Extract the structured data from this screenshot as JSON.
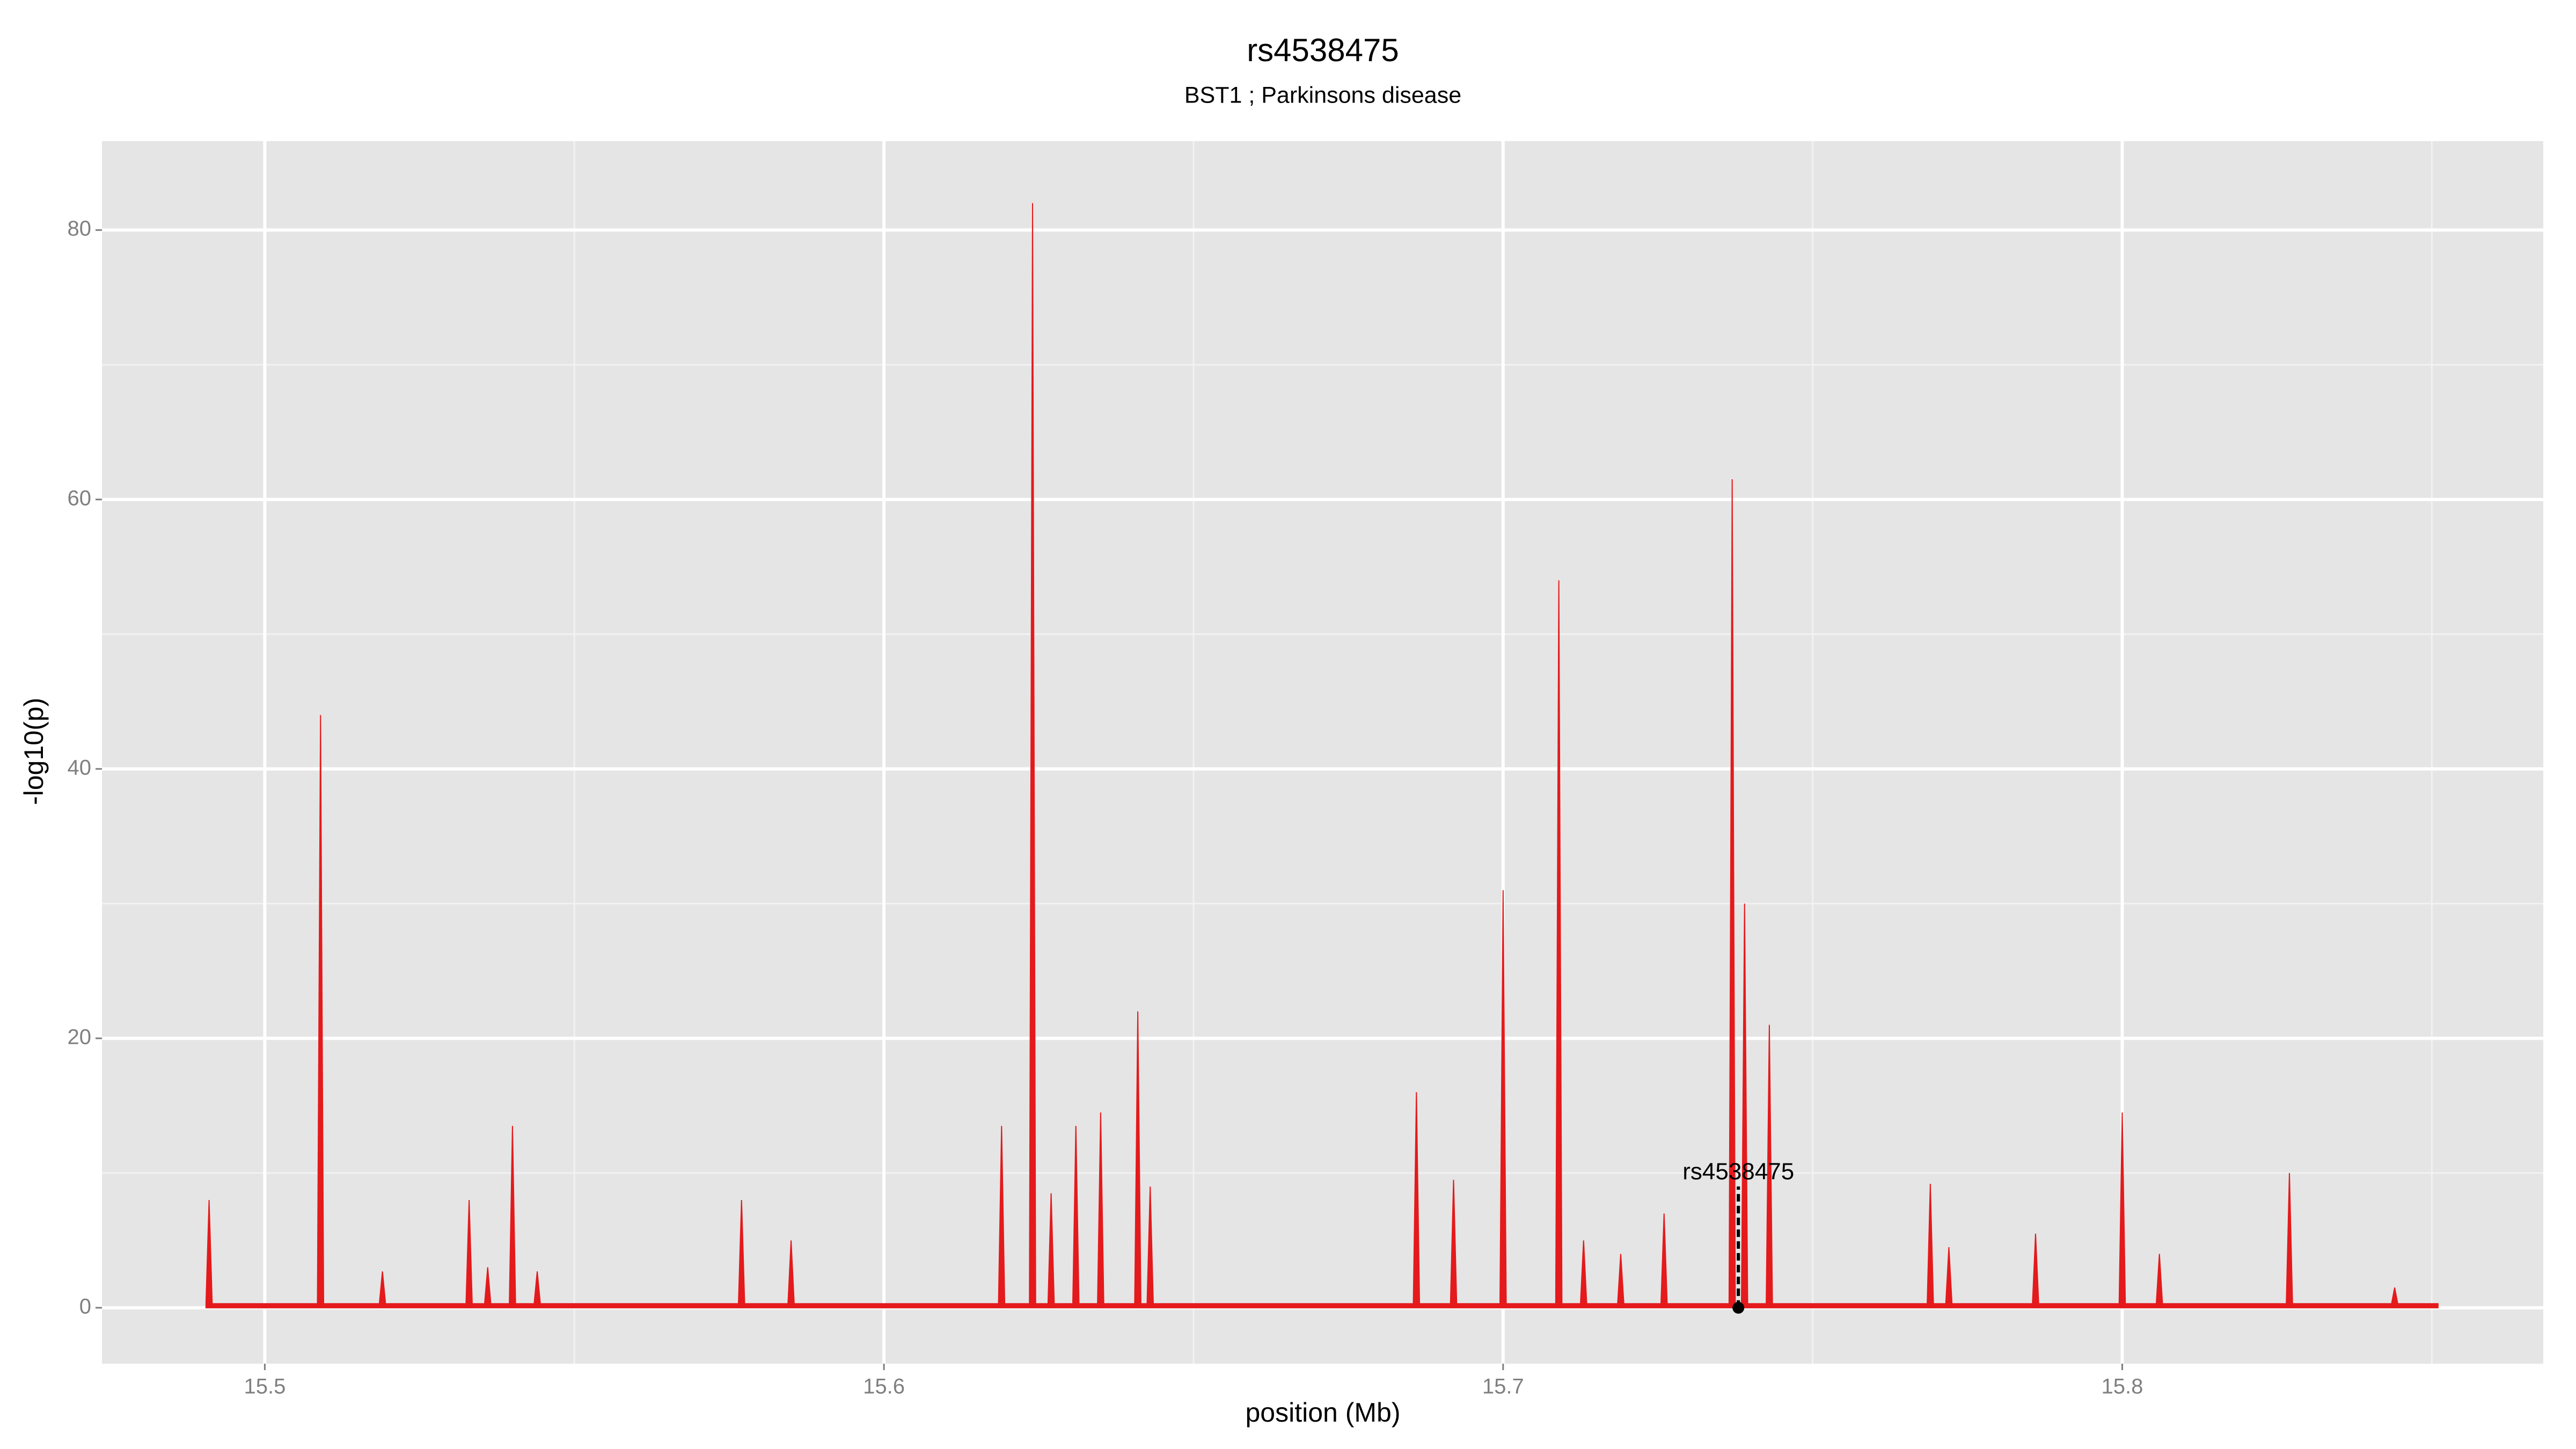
{
  "chart_data": {
    "type": "area",
    "title": "rs4538475",
    "subtitle": "BST1 ; Parkinsons disease",
    "x_label": "position (Mb)",
    "y_label": "-log10(p)",
    "xlim": [
      15.4737,
      15.868
    ],
    "ylim": [
      -4.15,
      86.6
    ],
    "xticks": [
      15.5,
      15.6,
      15.7,
      15.8
    ],
    "yticks": [
      0,
      20,
      40,
      60,
      80
    ],
    "x_minor_grid": [
      15.55,
      15.65,
      15.75,
      15.85
    ],
    "y_minor_grid": [
      10,
      30,
      50,
      70
    ],
    "grid": true,
    "series": [
      {
        "color": "#e41a1c",
        "x": [
          15.4905,
          15.491,
          15.4915,
          15.5085,
          15.509,
          15.5095,
          15.5185,
          15.519,
          15.5195,
          15.5325,
          15.533,
          15.5335,
          15.5355,
          15.536,
          15.5365,
          15.5395,
          15.54,
          15.5405,
          15.5435,
          15.544,
          15.5445,
          15.5765,
          15.577,
          15.5775,
          15.5845,
          15.585,
          15.5855,
          15.6185,
          15.619,
          15.6195,
          15.6235,
          15.624,
          15.6245,
          15.6265,
          15.627,
          15.6275,
          15.6305,
          15.631,
          15.6315,
          15.6345,
          15.635,
          15.6355,
          15.6405,
          15.641,
          15.6415,
          15.6425,
          15.643,
          15.6435,
          15.6855,
          15.686,
          15.6865,
          15.6915,
          15.692,
          15.6925,
          15.6995,
          15.7,
          15.7005,
          15.7085,
          15.709,
          15.7095,
          15.7125,
          15.713,
          15.7135,
          15.7185,
          15.719,
          15.7195,
          15.7255,
          15.726,
          15.7265,
          15.7365,
          15.737,
          15.7375,
          15.7385,
          15.739,
          15.7395,
          15.7425,
          15.743,
          15.7435,
          15.7685,
          15.769,
          15.7695,
          15.7715,
          15.772,
          15.7725,
          15.7855,
          15.786,
          15.7865,
          15.7995,
          15.8,
          15.8005,
          15.8055,
          15.806,
          15.8065,
          15.8265,
          15.827,
          15.8275,
          15.8435,
          15.844,
          15.8445,
          15.851
        ],
        "values": [
          0.3,
          8,
          0.3,
          0.3,
          44,
          0.3,
          0.3,
          2.7,
          0.3,
          0.3,
          8,
          0.3,
          0.3,
          3,
          0.3,
          0.3,
          13.5,
          0.3,
          0.3,
          2.7,
          0.3,
          0.3,
          8,
          0.3,
          0.3,
          5,
          0.3,
          0.3,
          13.5,
          0.3,
          0.3,
          82,
          0.3,
          0.3,
          8.5,
          0.3,
          0.3,
          13.5,
          0.3,
          0.3,
          14.5,
          0.3,
          0.3,
          22,
          0.3,
          0.3,
          9,
          0.3,
          0.3,
          16,
          0.3,
          0.3,
          9.5,
          0.3,
          0.3,
          31,
          0.3,
          0.3,
          54,
          0.3,
          0.3,
          5,
          0.3,
          0.3,
          4,
          0.3,
          0.3,
          7,
          0.3,
          0.3,
          61.5,
          0.3,
          0.3,
          30,
          0.3,
          0.3,
          21,
          0.3,
          0.3,
          9.2,
          0.3,
          0.3,
          4.5,
          0.3,
          0.3,
          5.5,
          0.3,
          0.3,
          14.5,
          0.3,
          0.3,
          4,
          0.3,
          0.3,
          10,
          0.3,
          0.3,
          1.5,
          0.3,
          0.3
        ]
      }
    ],
    "annotation": {
      "label": "rs4538475",
      "x": 15.738,
      "y": 0,
      "label_y": 10
    }
  }
}
